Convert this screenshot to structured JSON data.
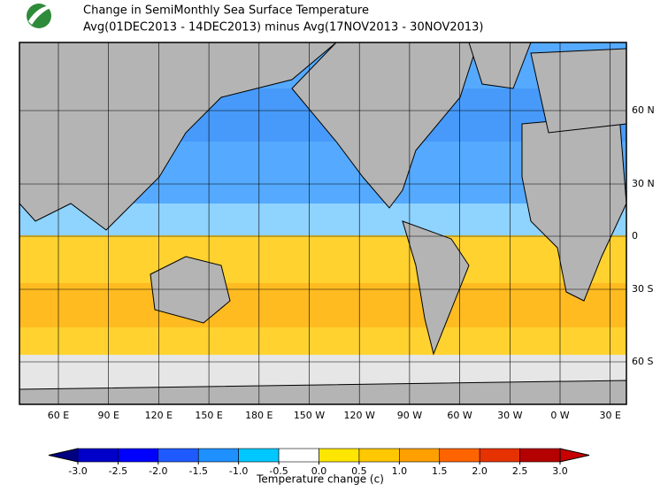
{
  "header": {
    "title": "Change in SemiMonthly Sea Surface Temperature",
    "subtitle": "Avg(01DEC2013 - 14DEC2013) minus Avg(17NOV2013 - 30NOV2013)"
  },
  "map": {
    "lat_labels": [
      "60 N",
      "30 N",
      "0",
      "30 S",
      "60 S"
    ],
    "lon_labels": [
      "60 E",
      "90 E",
      "120 E",
      "150 E",
      "180 E",
      "150 W",
      "120 W",
      "90 W",
      "60 W",
      "30 W",
      "0 W",
      "30 E"
    ]
  },
  "colorbar": {
    "ticks": [
      {
        "value": -3,
        "label": "-3.0"
      },
      {
        "value": -2.5,
        "label": "-2.5"
      },
      {
        "value": -2,
        "label": "-2.0"
      },
      {
        "value": -1.5,
        "label": "-1.5"
      },
      {
        "value": -1,
        "label": "-1.0"
      },
      {
        "value": -0.5,
        "label": "-0.5"
      },
      {
        "value": 0,
        "label": "0.0"
      },
      {
        "value": 0.5,
        "label": "0.5"
      },
      {
        "value": 1,
        "label": "1.0"
      },
      {
        "value": 1.5,
        "label": "1.5"
      },
      {
        "value": 2,
        "label": "2.0"
      },
      {
        "value": 2.5,
        "label": "2.5"
      },
      {
        "value": 3,
        "label": "3.0"
      }
    ],
    "colors": [
      "#000080",
      "#0000c8",
      "#0000ff",
      "#1e5aff",
      "#1e90ff",
      "#00c8ff",
      "#ffffff",
      "#ffe600",
      "#ffc800",
      "#ffa000",
      "#ff6400",
      "#e63200",
      "#b40000",
      "#c80000"
    ],
    "label": "Temperature change  (c)"
  }
}
